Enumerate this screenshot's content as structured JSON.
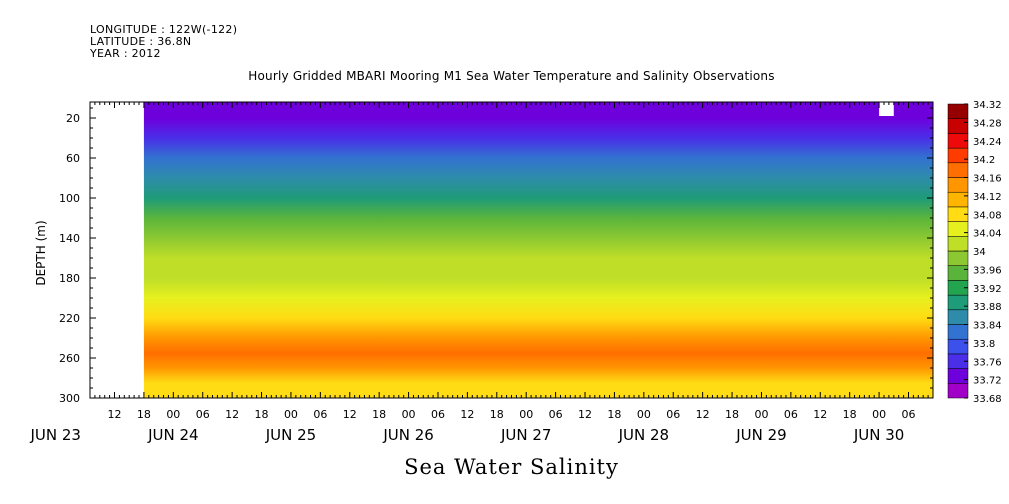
{
  "header": {
    "longitude": "LONGITUDE : 122W(-122)",
    "latitude": "LATITUDE : 36.8N",
    "year": "YEAR : 2012"
  },
  "chart_data": {
    "type": "heatmap",
    "title": "Hourly Gridded MBARI Mooring M1 Sea Water Temperature and Salinity Observations",
    "subtitle": "Sea Water Salinity",
    "ylabel": "DEPTH (m)",
    "xlabel": "",
    "y_inverted": true,
    "ylim": [
      300,
      4
    ],
    "y_ticks": [
      20,
      60,
      100,
      140,
      180,
      220,
      260,
      300
    ],
    "x_range_hours": [
      "2012-06-23 07:00",
      "2012-06-30 11:00"
    ],
    "x_tick_labels": [
      "12",
      "18",
      "00",
      "06",
      "12",
      "18",
      "00",
      "06",
      "12",
      "18",
      "00",
      "06",
      "12",
      "18",
      "00",
      "06",
      "12",
      "18",
      "00",
      "06",
      "12",
      "18",
      "00",
      "06",
      "12",
      "18",
      "00",
      "06"
    ],
    "date_labels": [
      "JUN 23",
      "JUN 24",
      "JUN 25",
      "JUN 26",
      "JUN 27",
      "JUN 28",
      "JUN 29",
      "JUN 30"
    ],
    "colorbar": {
      "min": 33.68,
      "max": 34.32,
      "step": 0.04,
      "tick_labels": [
        "34.32",
        "34.28",
        "34.24",
        "34.2",
        "34.16",
        "34.12",
        "34.08",
        "34.04",
        "34",
        "33.96",
        "33.92",
        "33.88",
        "33.84",
        "33.8",
        "33.76",
        "33.72",
        "33.68"
      ],
      "colors": [
        "#a000c8",
        "#6e00dc",
        "#4a2ee8",
        "#3c50ec",
        "#3272d0",
        "#2e8caa",
        "#1e9b78",
        "#23a550",
        "#5ab43c",
        "#8cc832",
        "#bede28",
        "#e6f01e",
        "#ffdc14",
        "#ffb400",
        "#ff9600",
        "#ff6e00",
        "#ff3c00",
        "#ee0a0a",
        "#c80000",
        "#960000"
      ]
    },
    "data_start": "2012-06-23 18:00",
    "profile": [
      {
        "depth": 5,
        "value": 33.75
      },
      {
        "depth": 20,
        "value": 33.76
      },
      {
        "depth": 40,
        "value": 33.8
      },
      {
        "depth": 60,
        "value": 33.86
      },
      {
        "depth": 80,
        "value": 33.89
      },
      {
        "depth": 100,
        "value": 33.95
      },
      {
        "depth": 120,
        "value": 34.02
      },
      {
        "depth": 140,
        "value": 34.07
      },
      {
        "depth": 160,
        "value": 34.1
      },
      {
        "depth": 180,
        "value": 34.11
      },
      {
        "depth": 200,
        "value": 34.13
      },
      {
        "depth": 220,
        "value": 34.18
      },
      {
        "depth": 240,
        "value": 34.25
      },
      {
        "depth": 255,
        "value": 34.29
      },
      {
        "depth": 270,
        "value": 34.24
      },
      {
        "depth": 285,
        "value": 34.19
      },
      {
        "depth": 300,
        "value": 34.17
      }
    ],
    "missing_data": [
      {
        "from": "2012-06-30 00:00",
        "to": "2012-06-30 03:00",
        "depth_from": 4,
        "depth_to": 18
      }
    ],
    "grid": false
  }
}
